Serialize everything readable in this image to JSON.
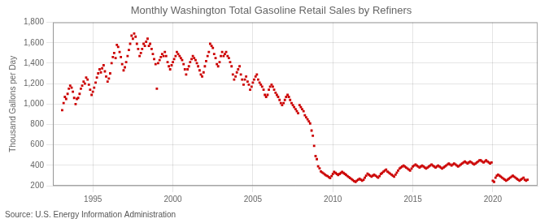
{
  "chart_data": {
    "type": "scatter",
    "title": "Monthly Washington Total Gasoline Retail Sales by Refiners",
    "ylabel": "Thousand Gallons per Day",
    "annotations": [
      "Source: U.S. Energy Information Administration"
    ],
    "color": "#cc0000",
    "marker": "square",
    "grid": true,
    "xlim": [
      1992.5,
      2022.8
    ],
    "xticks": [
      1995,
      2000,
      2005,
      2010,
      2015,
      2020
    ],
    "ylim": [
      200,
      1800
    ],
    "yticks": [
      200,
      400,
      600,
      800,
      {
        "value": 1000,
        "label": "1,000"
      },
      {
        "value": 1200,
        "label": "1,200"
      },
      {
        "value": 1400,
        "label": "1,400"
      },
      {
        "value": 1600,
        "label": "1,600"
      },
      {
        "value": 1800,
        "label": "1,800"
      }
    ],
    "x": [
      1993.08,
      1993.17,
      1993.25,
      1993.33,
      1993.42,
      1993.5,
      1993.58,
      1993.67,
      1993.75,
      1993.83,
      1993.92,
      1994.0,
      1994.08,
      1994.17,
      1994.25,
      1994.33,
      1994.42,
      1994.5,
      1994.58,
      1994.67,
      1994.75,
      1994.83,
      1994.92,
      1995.0,
      1995.08,
      1995.17,
      1995.25,
      1995.33,
      1995.42,
      1995.5,
      1995.58,
      1995.67,
      1995.75,
      1995.83,
      1995.92,
      1996.0,
      1996.08,
      1996.17,
      1996.25,
      1996.33,
      1996.42,
      1996.5,
      1996.58,
      1996.67,
      1996.75,
      1996.83,
      1996.92,
      1997.0,
      1997.08,
      1997.17,
      1997.25,
      1997.33,
      1997.42,
      1997.5,
      1997.58,
      1997.67,
      1997.75,
      1997.83,
      1997.92,
      1998.0,
      1998.08,
      1998.17,
      1998.25,
      1998.33,
      1998.42,
      1998.5,
      1998.58,
      1998.67,
      1998.75,
      1998.83,
      1998.92,
      1999.0,
      1999.08,
      1999.17,
      1999.25,
      1999.33,
      1999.42,
      1999.5,
      1999.58,
      1999.67,
      1999.75,
      1999.83,
      1999.92,
      2000.0,
      2000.08,
      2000.17,
      2000.25,
      2000.33,
      2000.42,
      2000.5,
      2000.58,
      2000.67,
      2000.75,
      2000.83,
      2000.92,
      2001.0,
      2001.08,
      2001.17,
      2001.25,
      2001.33,
      2001.42,
      2001.5,
      2001.58,
      2001.67,
      2001.75,
      2001.83,
      2001.92,
      2002.0,
      2002.08,
      2002.17,
      2002.25,
      2002.33,
      2002.42,
      2002.5,
      2002.58,
      2002.67,
      2002.75,
      2002.83,
      2002.92,
      2003.0,
      2003.08,
      2003.17,
      2003.25,
      2003.33,
      2003.42,
      2003.5,
      2003.58,
      2003.67,
      2003.75,
      2003.83,
      2003.92,
      2004.0,
      2004.08,
      2004.17,
      2004.25,
      2004.33,
      2004.42,
      2004.5,
      2004.58,
      2004.67,
      2004.75,
      2004.83,
      2004.92,
      2005.0,
      2005.08,
      2005.17,
      2005.25,
      2005.33,
      2005.42,
      2005.5,
      2005.58,
      2005.67,
      2005.75,
      2005.83,
      2005.92,
      2006.0,
      2006.08,
      2006.17,
      2006.25,
      2006.33,
      2006.42,
      2006.5,
      2006.58,
      2006.67,
      2006.75,
      2006.83,
      2006.92,
      2007.0,
      2007.08,
      2007.17,
      2007.25,
      2007.33,
      2007.42,
      2007.5,
      2007.58,
      2007.67,
      2007.75,
      2007.83,
      2007.92,
      2008.0,
      2008.08,
      2008.17,
      2008.25,
      2008.33,
      2008.42,
      2008.5,
      2008.58,
      2008.67,
      2008.75,
      2008.83,
      2008.92,
      2009.0,
      2009.08,
      2009.17,
      2009.25,
      2009.33,
      2009.42,
      2009.5,
      2009.58,
      2009.67,
      2009.75,
      2009.83,
      2009.92,
      2010.0,
      2010.08,
      2010.17,
      2010.25,
      2010.33,
      2010.42,
      2010.5,
      2010.58,
      2010.67,
      2010.75,
      2010.83,
      2010.92,
      2011.0,
      2011.08,
      2011.17,
      2011.25,
      2011.33,
      2011.42,
      2011.5,
      2011.58,
      2011.67,
      2011.75,
      2011.83,
      2011.92,
      2012.0,
      2012.08,
      2012.17,
      2012.25,
      2012.33,
      2012.42,
      2012.5,
      2012.58,
      2012.67,
      2012.75,
      2012.83,
      2012.92,
      2013.0,
      2013.08,
      2013.17,
      2013.25,
      2013.33,
      2013.42,
      2013.5,
      2013.58,
      2013.67,
      2013.75,
      2013.83,
      2013.92,
      2014.0,
      2014.08,
      2014.17,
      2014.25,
      2014.33,
      2014.42,
      2014.5,
      2014.58,
      2014.67,
      2014.75,
      2014.83,
      2014.92,
      2015.0,
      2015.08,
      2015.17,
      2015.25,
      2015.33,
      2015.42,
      2015.5,
      2015.58,
      2015.67,
      2015.75,
      2015.83,
      2015.92,
      2016.0,
      2016.08,
      2016.17,
      2016.25,
      2016.33,
      2016.42,
      2016.5,
      2016.58,
      2016.67,
      2016.75,
      2016.83,
      2016.92,
      2017.0,
      2017.08,
      2017.17,
      2017.25,
      2017.33,
      2017.42,
      2017.5,
      2017.58,
      2017.67,
      2017.75,
      2017.83,
      2017.92,
      2018.0,
      2018.08,
      2018.17,
      2018.25,
      2018.33,
      2018.42,
      2018.5,
      2018.58,
      2018.67,
      2018.75,
      2018.83,
      2018.92,
      2019.0,
      2019.08,
      2019.17,
      2019.25,
      2019.33,
      2019.42,
      2019.5,
      2019.58,
      2019.67,
      2019.75,
      2019.83,
      2019.92,
      2020.0,
      2020.08,
      2020.17,
      2020.25,
      2020.33,
      2020.42,
      2020.5,
      2020.58,
      2020.67,
      2020.75,
      2020.83,
      2020.92,
      2021.0,
      2021.08,
      2021.17,
      2021.25,
      2021.33,
      2021.42,
      2021.5,
      2021.58,
      2021.67,
      2021.75,
      2021.83,
      2021.92,
      2022.0,
      2022.08,
      2022.17
    ],
    "values": [
      940,
      1010,
      1070,
      1050,
      1100,
      1150,
      1180,
      1160,
      1120,
      1060,
      1000,
      1050,
      1060,
      1100,
      1150,
      1180,
      1220,
      1200,
      1260,
      1240,
      1190,
      1140,
      1090,
      1120,
      1160,
      1210,
      1260,
      1300,
      1340,
      1310,
      1350,
      1380,
      1320,
      1270,
      1220,
      1250,
      1300,
      1400,
      1460,
      1500,
      1450,
      1580,
      1560,
      1510,
      1460,
      1390,
      1330,
      1360,
      1410,
      1470,
      1530,
      1590,
      1670,
      1640,
      1690,
      1660,
      1590,
      1540,
      1470,
      1500,
      1540,
      1590,
      1570,
      1610,
      1640,
      1570,
      1590,
      1540,
      1490,
      1440,
      1390,
      1150,
      1400,
      1430,
      1460,
      1490,
      1470,
      1510,
      1470,
      1410,
      1370,
      1340,
      1380,
      1410,
      1440,
      1470,
      1510,
      1490,
      1470,
      1450,
      1430,
      1390,
      1340,
      1290,
      1340,
      1370,
      1410,
      1440,
      1470,
      1450,
      1430,
      1400,
      1370,
      1330,
      1290,
      1270,
      1310,
      1370,
      1420,
      1470,
      1510,
      1590,
      1570,
      1550,
      1490,
      1450,
      1390,
      1370,
      1410,
      1470,
      1510,
      1470,
      1490,
      1510,
      1470,
      1450,
      1410,
      1370,
      1290,
      1240,
      1270,
      1310,
      1340,
      1370,
      1290,
      1240,
      1190,
      1240,
      1270,
      1220,
      1190,
      1140,
      1170,
      1210,
      1240,
      1270,
      1290,
      1240,
      1210,
      1190,
      1170,
      1140,
      1090,
      1070,
      1090,
      1140,
      1170,
      1190,
      1170,
      1140,
      1110,
      1090,
      1070,
      1040,
      1010,
      990,
      1010,
      1040,
      1070,
      1090,
      1070,
      1040,
      1010,
      990,
      970,
      950,
      930,
      910,
      990,
      970,
      950,
      930,
      890,
      870,
      850,
      830,
      810,
      740,
      690,
      590,
      490,
      460,
      390,
      370,
      340,
      330,
      320,
      310,
      300,
      295,
      285,
      275,
      295,
      315,
      335,
      325,
      315,
      305,
      315,
      325,
      335,
      325,
      315,
      305,
      295,
      285,
      275,
      265,
      255,
      245,
      238,
      248,
      258,
      268,
      258,
      248,
      258,
      278,
      298,
      318,
      308,
      298,
      288,
      298,
      308,
      298,
      288,
      278,
      295,
      315,
      325,
      338,
      348,
      358,
      338,
      328,
      318,
      308,
      298,
      288,
      308,
      328,
      348,
      368,
      378,
      388,
      398,
      388,
      378,
      368,
      358,
      348,
      368,
      388,
      398,
      408,
      398,
      388,
      378,
      388,
      398,
      388,
      378,
      368,
      378,
      388,
      398,
      408,
      398,
      388,
      378,
      388,
      398,
      388,
      378,
      368,
      378,
      388,
      398,
      408,
      418,
      408,
      398,
      408,
      418,
      408,
      398,
      388,
      398,
      408,
      418,
      428,
      438,
      428,
      418,
      428,
      438,
      428,
      418,
      408,
      418,
      428,
      438,
      448,
      448,
      438,
      428,
      438,
      448,
      438,
      428,
      418,
      428,
      248,
      238,
      278,
      298,
      308,
      298,
      288,
      278,
      268,
      258,
      248,
      258,
      268,
      278,
      288,
      298,
      288,
      278,
      268,
      258,
      248,
      258,
      268,
      278,
      258,
      248,
      258
    ]
  }
}
